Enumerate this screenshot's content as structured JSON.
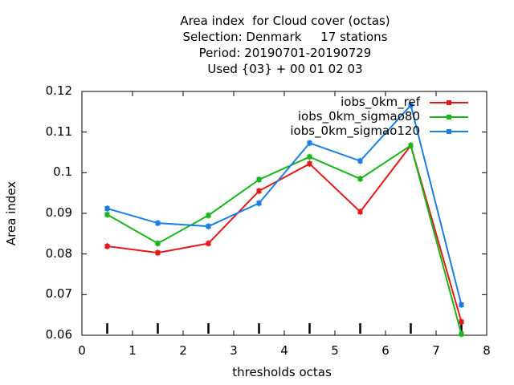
{
  "chart_data": {
    "type": "line",
    "title_lines": [
      "Area index  for Cloud cover (octas)",
      "Selection: Denmark     17 stations",
      "Period: 20190701-20190729",
      "Used {03} + 00 01 02 03"
    ],
    "xlabel": "thresholds octas",
    "ylabel": "Area index",
    "xlim": [
      0,
      8
    ],
    "ylim": [
      0.06,
      0.12
    ],
    "xticks": [
      "0",
      "1",
      "2",
      "3",
      "4",
      "5",
      "6",
      "7",
      "8"
    ],
    "yticks": [
      "0.06",
      "0.07",
      "0.08",
      "0.09",
      "0.1",
      "0.11",
      "0.12"
    ],
    "grid": false,
    "legend_position": "top-right",
    "x": [
      0.5,
      1.5,
      2.5,
      3.5,
      4.5,
      5.5,
      6.5,
      7.5
    ],
    "series": [
      {
        "name": "iobs_0km_ref",
        "color": "#e41a1a",
        "values": [
          0.0819,
          0.0803,
          0.0826,
          0.0955,
          0.1022,
          0.0904,
          0.1067,
          0.0633
        ]
      },
      {
        "name": "iobs_0km_sigmao80",
        "color": "#1ab51a",
        "values": [
          0.0897,
          0.0826,
          0.0895,
          0.0983,
          0.1039,
          0.0985,
          0.1067,
          0.0603
        ]
      },
      {
        "name": "iobs_0km_sigmao120",
        "color": "#1a7fe4",
        "values": [
          0.0912,
          0.0876,
          0.0868,
          0.0925,
          0.1073,
          0.1029,
          0.1166,
          0.0675
        ]
      }
    ],
    "sample_markers": [
      0.5,
      1.5,
      2.5,
      3.5,
      4.5,
      5.5,
      6.5,
      7.5
    ]
  }
}
